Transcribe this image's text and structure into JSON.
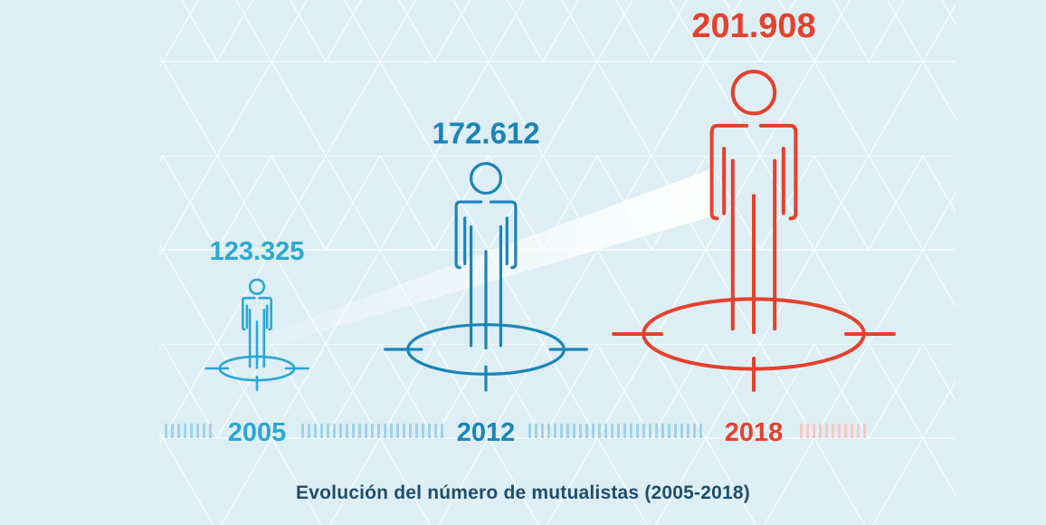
{
  "caption": "Evolución del número de mutualistas (2005-2018)",
  "colors": {
    "background": "#ddeef5",
    "pattern": "#ffffff",
    "series_blue": "#2aa8d4",
    "series_dark_blue": "#1b84b8",
    "highlight_red": "#e5412d",
    "caption": "#1f4e6b",
    "timeline_blue": "#9fd3ea",
    "timeline_red": "#f7c9c2"
  },
  "chart_data": {
    "type": "pictograph",
    "title": "",
    "categories": [
      "2005",
      "2012",
      "2018"
    ],
    "values": [
      123325,
      172612,
      201908
    ],
    "value_labels": [
      "123.325",
      "172.612",
      "201.908"
    ],
    "highlight_index": 2
  }
}
